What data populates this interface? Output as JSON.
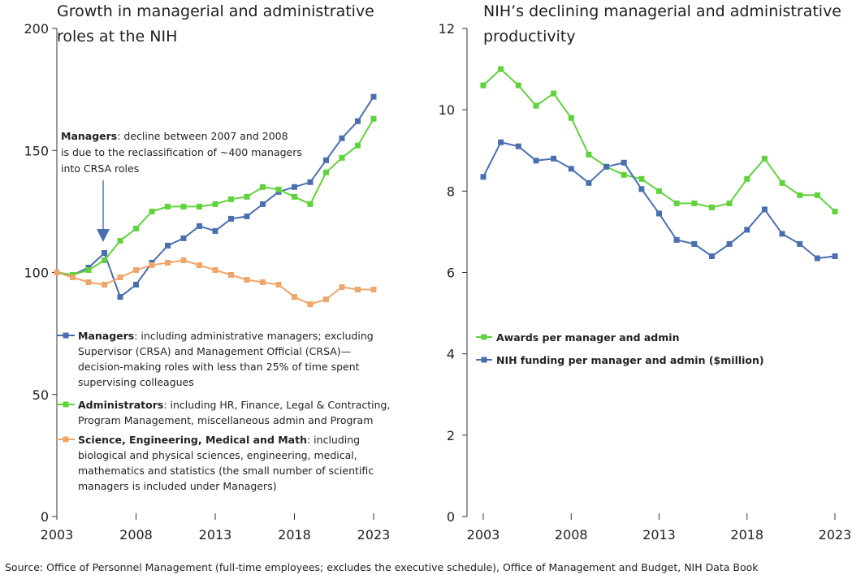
{
  "chart_data": [
    {
      "type": "line",
      "title_lines": [
        "Growth in managerial and administrative",
        "roles at the NIH"
      ],
      "xlabel": "",
      "ylabel": "",
      "xlim": [
        2003,
        2023
      ],
      "ylim": [
        0,
        200
      ],
      "x_ticks": [
        "2003",
        "2008",
        "2013",
        "2018",
        "2023"
      ],
      "y_ticks": [
        "0",
        "50",
        "100",
        "150",
        "200"
      ],
      "x": [
        2003,
        2004,
        2005,
        2006,
        2007,
        2008,
        2009,
        2010,
        2011,
        2012,
        2013,
        2014,
        2015,
        2016,
        2017,
        2018,
        2019,
        2020,
        2021,
        2022,
        2023
      ],
      "series": [
        {
          "key": "managers",
          "color": "#4a6fb0",
          "values": [
            100,
            99,
            102,
            108,
            90,
            95,
            104,
            111,
            114,
            119,
            117,
            122,
            123,
            128,
            133,
            135,
            137,
            146,
            155,
            162,
            172
          ]
        },
        {
          "key": "administrators",
          "color": "#5fd33a",
          "values": [
            100,
            99,
            101,
            105,
            113,
            118,
            125,
            127,
            127,
            127,
            128,
            130,
            131,
            135,
            134,
            131,
            128,
            141,
            147,
            152,
            163
          ]
        },
        {
          "key": "science",
          "color": "#f0a56a",
          "values": [
            100,
            98,
            96,
            95,
            98,
            101,
            103,
            104,
            105,
            103,
            101,
            99,
            97,
            96,
            95,
            90,
            87,
            89,
            94,
            93,
            93
          ]
        }
      ],
      "legend": [
        {
          "color": "#4a6fb0",
          "bold": "Managers",
          "lines": [
            ": including administrative managers; excluding",
            "Supervisor (CRSA) and Management Official (CRSA)—",
            "decision-making roles with less than 25% of time spent",
            "supervising colleagues"
          ]
        },
        {
          "color": "#5fd33a",
          "bold": "Administrators",
          "lines": [
            ": including HR, Finance, Legal & Contracting,",
            "Program Management, miscellaneous admin and Program"
          ]
        },
        {
          "color": "#f0a56a",
          "bold": "Science, Engineering, Medical and Math",
          "lines": [
            ": including",
            "biological and physical sciences, engineering, medical,",
            "mathematics and statistics (the small number of scientific",
            "managers is included under Managers)"
          ]
        }
      ],
      "annotation": {
        "bold": "Managers",
        "lines": [
          ": decline between 2007 and 2008",
          "is due to the reclassification of ~400 managers",
          "into CRSA roles"
        ]
      }
    },
    {
      "type": "line",
      "title_lines": [
        "NIH’s declining managerial and administrative",
        "productivity"
      ],
      "xlabel": "",
      "ylabel": "",
      "xlim": [
        2003,
        2023
      ],
      "ylim": [
        0,
        12
      ],
      "x_ticks": [
        "2003",
        "2008",
        "2013",
        "2018",
        "2023"
      ],
      "y_ticks": [
        "0",
        "2",
        "4",
        "6",
        "8",
        "10",
        "12"
      ],
      "x": [
        2003,
        2004,
        2005,
        2006,
        2007,
        2008,
        2009,
        2010,
        2011,
        2012,
        2013,
        2014,
        2015,
        2016,
        2017,
        2018,
        2019,
        2020,
        2021,
        2022,
        2023
      ],
      "series": [
        {
          "key": "awards",
          "name": "Awards per manager and admin",
          "color": "#5fd33a",
          "values": [
            10.6,
            11.0,
            10.6,
            10.1,
            10.4,
            9.8,
            8.9,
            8.6,
            8.4,
            8.3,
            8.0,
            7.7,
            7.7,
            7.6,
            7.7,
            8.3,
            8.8,
            8.2,
            7.9,
            7.9,
            7.5
          ]
        },
        {
          "key": "funding",
          "name": "NIH funding per manager and admin ($million)",
          "color": "#4a6fb0",
          "values": [
            8.35,
            9.2,
            9.1,
            8.75,
            8.8,
            8.55,
            8.2,
            8.6,
            8.7,
            8.05,
            7.45,
            6.8,
            6.7,
            6.4,
            6.7,
            7.05,
            7.55,
            6.95,
            6.7,
            6.35,
            6.4
          ]
        }
      ]
    }
  ],
  "source": "Source: Office of Personnel Management (full-time employees; excludes the executive schedule), Office of Management and Budget, NIH Data Book"
}
